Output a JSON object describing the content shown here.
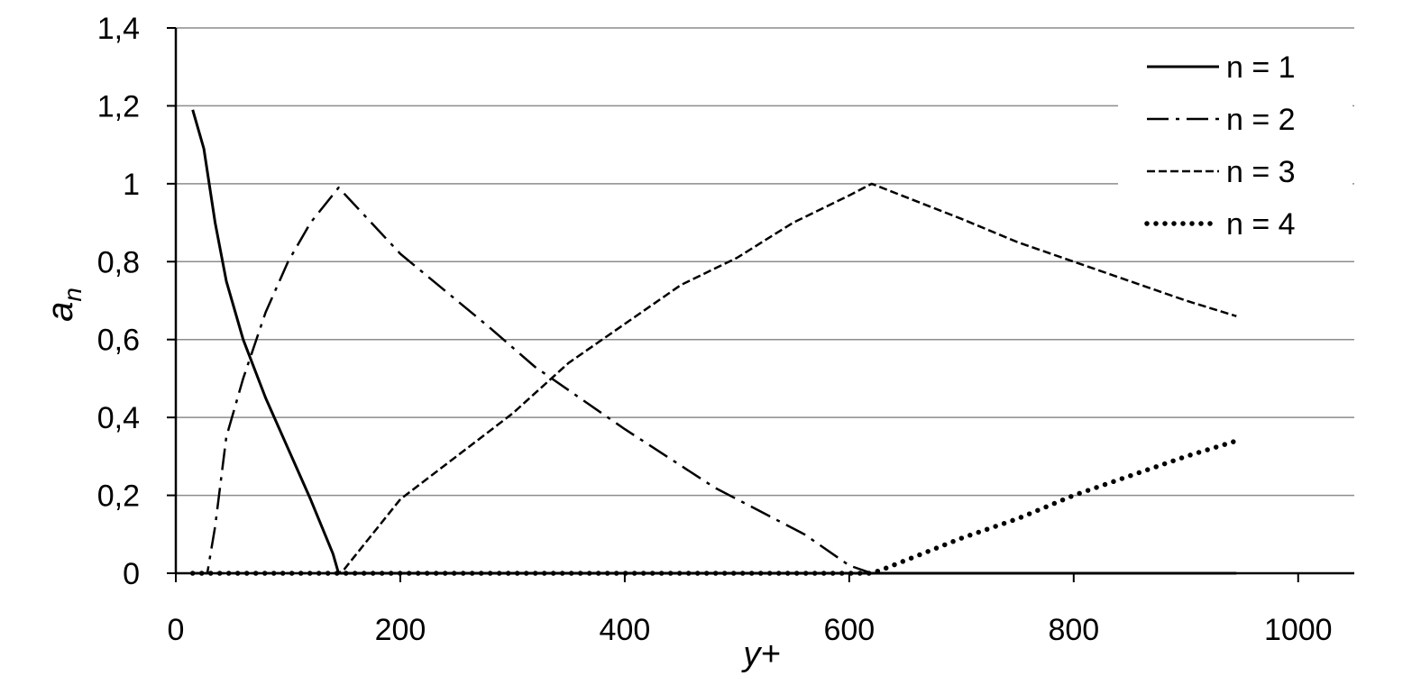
{
  "chart_data": {
    "type": "line",
    "title": "",
    "xlabel": "y+",
    "ylabel": "a",
    "ylabel_subscript": "n",
    "xlim": [
      0,
      1050
    ],
    "ylim": [
      0,
      1.4
    ],
    "x_ticks": [
      {
        "value": 0,
        "label": "0"
      },
      {
        "value": 200,
        "label": "200"
      },
      {
        "value": 400,
        "label": "400"
      },
      {
        "value": 600,
        "label": "600"
      },
      {
        "value": 800,
        "label": "800"
      },
      {
        "value": 1000,
        "label": "1000"
      }
    ],
    "y_ticks": [
      {
        "value": 0,
        "label": "0"
      },
      {
        "value": 0.2,
        "label": "0,2"
      },
      {
        "value": 0.4,
        "label": "0,4"
      },
      {
        "value": 0.6,
        "label": "0,6"
      },
      {
        "value": 0.8,
        "label": "0,8"
      },
      {
        "value": 1.0,
        "label": "1"
      },
      {
        "value": 1.2,
        "label": "1,2"
      },
      {
        "value": 1.4,
        "label": "1,4"
      }
    ],
    "grid": "horizontal",
    "legend_position": "top-right",
    "series": [
      {
        "name": "n = 1",
        "style": "solid",
        "color": "#000000",
        "points": [
          [
            15,
            1.19
          ],
          [
            25,
            1.09
          ],
          [
            35,
            0.9
          ],
          [
            45,
            0.75
          ],
          [
            60,
            0.6
          ],
          [
            80,
            0.45
          ],
          [
            100,
            0.32
          ],
          [
            120,
            0.19
          ],
          [
            130,
            0.12
          ],
          [
            140,
            0.05
          ],
          [
            145,
            0.0
          ],
          [
            200,
            0.0
          ],
          [
            400,
            0.0
          ],
          [
            600,
            0.0
          ],
          [
            800,
            0.0
          ],
          [
            945,
            0.0
          ]
        ]
      },
      {
        "name": "n = 2",
        "style": "dashdot",
        "color": "#000000",
        "points": [
          [
            15,
            0.0
          ],
          [
            28,
            0.0
          ],
          [
            35,
            0.12
          ],
          [
            45,
            0.35
          ],
          [
            60,
            0.5
          ],
          [
            80,
            0.67
          ],
          [
            100,
            0.8
          ],
          [
            120,
            0.9
          ],
          [
            145,
            0.99
          ],
          [
            200,
            0.82
          ],
          [
            280,
            0.63
          ],
          [
            320,
            0.53
          ],
          [
            400,
            0.37
          ],
          [
            480,
            0.22
          ],
          [
            560,
            0.1
          ],
          [
            600,
            0.02
          ],
          [
            620,
            0.0
          ],
          [
            800,
            0.0
          ],
          [
            945,
            0.0
          ]
        ]
      },
      {
        "name": "n = 3",
        "style": "dashed",
        "color": "#000000",
        "points": [
          [
            15,
            0.0
          ],
          [
            145,
            0.0
          ],
          [
            150,
            0.01
          ],
          [
            200,
            0.19
          ],
          [
            250,
            0.3
          ],
          [
            300,
            0.41
          ],
          [
            350,
            0.54
          ],
          [
            400,
            0.64
          ],
          [
            450,
            0.74
          ],
          [
            500,
            0.81
          ],
          [
            550,
            0.9
          ],
          [
            600,
            0.97
          ],
          [
            620,
            1.0
          ],
          [
            700,
            0.91
          ],
          [
            750,
            0.85
          ],
          [
            800,
            0.8
          ],
          [
            850,
            0.75
          ],
          [
            900,
            0.7
          ],
          [
            945,
            0.66
          ]
        ]
      },
      {
        "name": "n = 4",
        "style": "dotted",
        "color": "#000000",
        "points": [
          [
            15,
            0.0
          ],
          [
            620,
            0.0
          ],
          [
            630,
            0.01
          ],
          [
            700,
            0.09
          ],
          [
            750,
            0.14
          ],
          [
            800,
            0.2
          ],
          [
            850,
            0.25
          ],
          [
            900,
            0.3
          ],
          [
            945,
            0.34
          ]
        ]
      }
    ]
  }
}
